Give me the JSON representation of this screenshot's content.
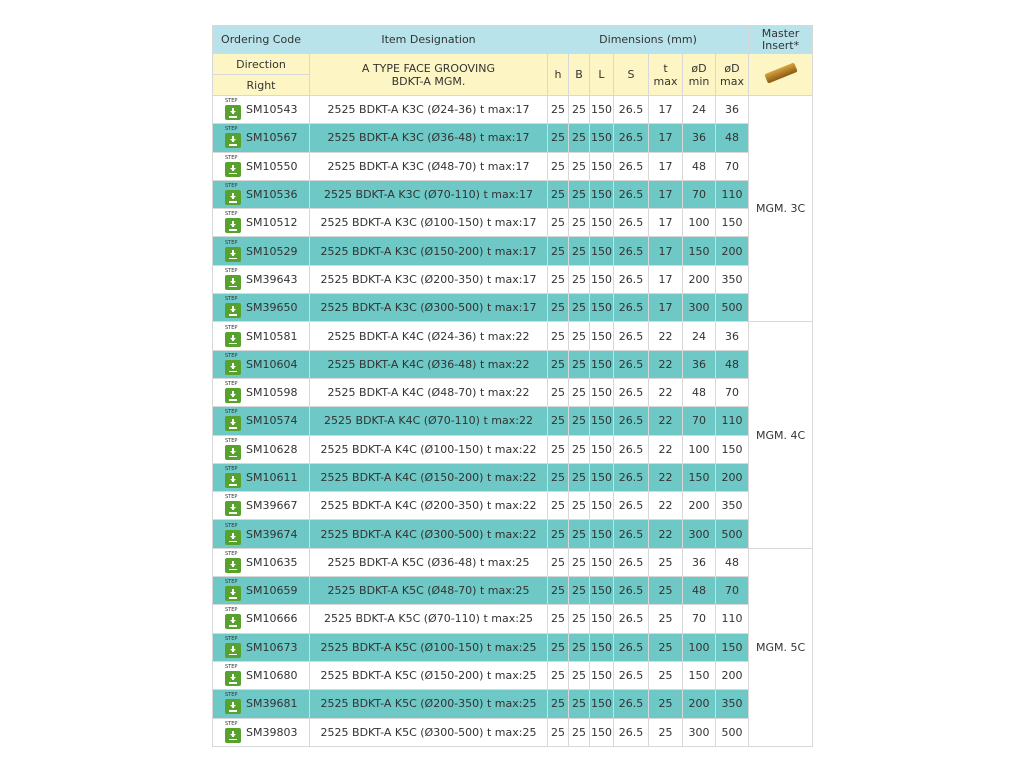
{
  "header": {
    "ordering_code": "Ordering Code",
    "item_designation": "Item Designation",
    "dimensions": "Dimensions (mm)",
    "master_insert": "Master Insert*",
    "direction": "Direction",
    "right": "Right",
    "type_line1": "A TYPE FACE GROOVING",
    "type_line2": "BDKT-A MGM.",
    "cols": {
      "h": "h",
      "B": "B",
      "L": "L",
      "S": "S",
      "t1": "t",
      "t2": "max",
      "dmin1": "øD",
      "dmin2": "min",
      "dmax1": "øD",
      "dmax2": "max"
    }
  },
  "step_label": "STEP",
  "icons": {
    "download": "step-download-icon",
    "insert": "insert-image"
  },
  "colors": {
    "header_blue": "#b8e3ea",
    "header_yellow": "#fdf6c4",
    "row_teal": "#6ec8c6",
    "step_green": "#57a22d"
  },
  "groups": [
    {
      "master": "MGM. 3C",
      "rows": [
        [
          "SM10543",
          "2525 BDKT-A K3C (Ø24-36) t max:17",
          "25",
          "25",
          "150",
          "26.5",
          "17",
          "24",
          "36"
        ],
        [
          "SM10567",
          "2525 BDKT-A K3C (Ø36-48) t max:17",
          "25",
          "25",
          "150",
          "26.5",
          "17",
          "36",
          "48"
        ],
        [
          "SM10550",
          "2525 BDKT-A K3C (Ø48-70) t max:17",
          "25",
          "25",
          "150",
          "26.5",
          "17",
          "48",
          "70"
        ],
        [
          "SM10536",
          "2525 BDKT-A K3C (Ø70-110) t max:17",
          "25",
          "25",
          "150",
          "26.5",
          "17",
          "70",
          "110"
        ],
        [
          "SM10512",
          "2525 BDKT-A K3C (Ø100-150) t max:17",
          "25",
          "25",
          "150",
          "26.5",
          "17",
          "100",
          "150"
        ],
        [
          "SM10529",
          "2525 BDKT-A K3C (Ø150-200) t max:17",
          "25",
          "25",
          "150",
          "26.5",
          "17",
          "150",
          "200"
        ],
        [
          "SM39643",
          "2525 BDKT-A K3C (Ø200-350) t max:17",
          "25",
          "25",
          "150",
          "26.5",
          "17",
          "200",
          "350"
        ],
        [
          "SM39650",
          "2525 BDKT-A K3C (Ø300-500) t max:17",
          "25",
          "25",
          "150",
          "26.5",
          "17",
          "300",
          "500"
        ]
      ]
    },
    {
      "master": "MGM. 4C",
      "rows": [
        [
          "SM10581",
          "2525 BDKT-A K4C (Ø24-36) t max:22",
          "25",
          "25",
          "150",
          "26.5",
          "22",
          "24",
          "36"
        ],
        [
          "SM10604",
          "2525 BDKT-A K4C (Ø36-48) t max:22",
          "25",
          "25",
          "150",
          "26.5",
          "22",
          "36",
          "48"
        ],
        [
          "SM10598",
          "2525 BDKT-A K4C (Ø48-70) t max:22",
          "25",
          "25",
          "150",
          "26.5",
          "22",
          "48",
          "70"
        ],
        [
          "SM10574",
          "2525 BDKT-A K4C (Ø70-110) t max:22",
          "25",
          "25",
          "150",
          "26.5",
          "22",
          "70",
          "110"
        ],
        [
          "SM10628",
          "2525 BDKT-A K4C (Ø100-150) t max:22",
          "25",
          "25",
          "150",
          "26.5",
          "22",
          "100",
          "150"
        ],
        [
          "SM10611",
          "2525 BDKT-A K4C (Ø150-200) t max:22",
          "25",
          "25",
          "150",
          "26.5",
          "22",
          "150",
          "200"
        ],
        [
          "SM39667",
          "2525 BDKT-A K4C (Ø200-350) t max:22",
          "25",
          "25",
          "150",
          "26.5",
          "22",
          "200",
          "350"
        ],
        [
          "SM39674",
          "2525 BDKT-A K4C (Ø300-500) t max:22",
          "25",
          "25",
          "150",
          "26.5",
          "22",
          "300",
          "500"
        ]
      ]
    },
    {
      "master": "MGM. 5C",
      "rows": [
        [
          "SM10635",
          "2525 BDKT-A K5C (Ø36-48) t max:25",
          "25",
          "25",
          "150",
          "26.5",
          "25",
          "36",
          "48"
        ],
        [
          "SM10659",
          "2525 BDKT-A K5C (Ø48-70) t max:25",
          "25",
          "25",
          "150",
          "26.5",
          "25",
          "48",
          "70"
        ],
        [
          "SM10666",
          "2525 BDKT-A K5C (Ø70-110) t max:25",
          "25",
          "25",
          "150",
          "26.5",
          "25",
          "70",
          "110"
        ],
        [
          "SM10673",
          "2525 BDKT-A K5C (Ø100-150) t max:25",
          "25",
          "25",
          "150",
          "26.5",
          "25",
          "100",
          "150"
        ],
        [
          "SM10680",
          "2525 BDKT-A K5C (Ø150-200) t max:25",
          "25",
          "25",
          "150",
          "26.5",
          "25",
          "150",
          "200"
        ],
        [
          "SM39681",
          "2525 BDKT-A K5C (Ø200-350) t max:25",
          "25",
          "25",
          "150",
          "26.5",
          "25",
          "200",
          "350"
        ],
        [
          "SM39803",
          "2525 BDKT-A K5C (Ø300-500) t max:25",
          "25",
          "25",
          "150",
          "26.5",
          "25",
          "300",
          "500"
        ]
      ]
    }
  ]
}
